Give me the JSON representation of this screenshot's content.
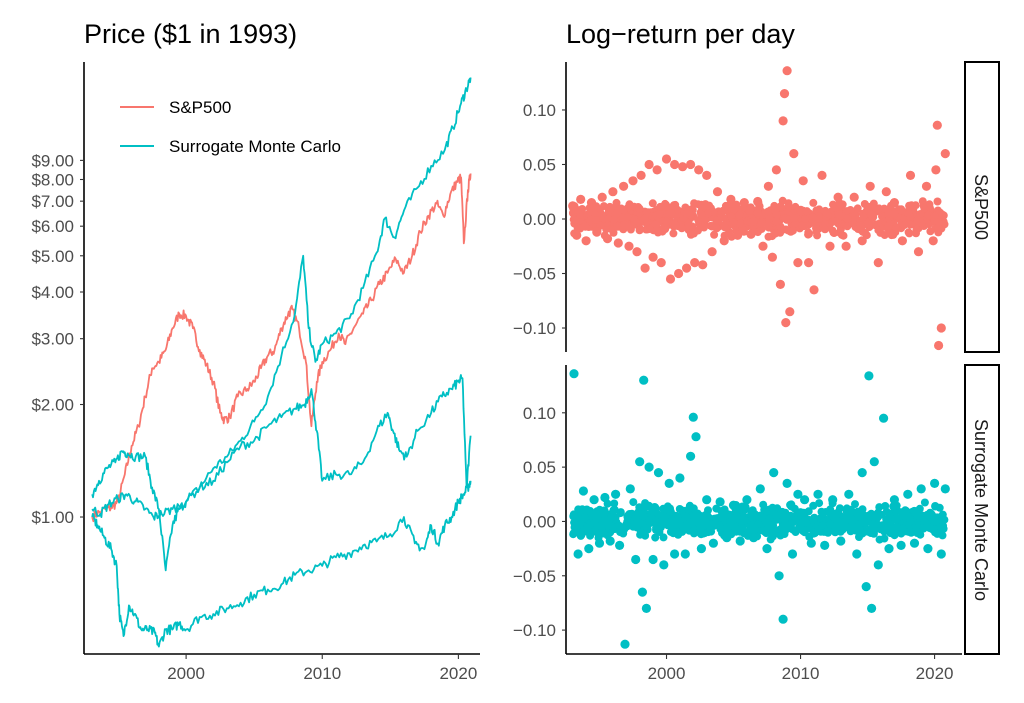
{
  "colors": {
    "sp500": "#F8766D",
    "surrogate": "#00BFC4"
  },
  "chart_data": [
    {
      "type": "line",
      "title": "Price ($1 in 1993)",
      "xlabel": "",
      "ylabel": "",
      "y_scale": "log",
      "xlim": [
        1992.5,
        2021.0
      ],
      "ylim": [
        0.43,
        16.5
      ],
      "x_ticks": [
        2000,
        2010,
        2020
      ],
      "y_ticks": [
        {
          "value": 1,
          "label": "$1.00"
        },
        {
          "value": 2,
          "label": "$2.00"
        },
        {
          "value": 3,
          "label": "$3.00"
        },
        {
          "value": 4,
          "label": "$4.00"
        },
        {
          "value": 5,
          "label": "$5.00"
        },
        {
          "value": 6,
          "label": "$6.00"
        },
        {
          "value": 7,
          "label": "$7.00"
        },
        {
          "value": 8,
          "label": "$8.00"
        },
        {
          "value": 9,
          "label": "$9.00"
        }
      ],
      "legend_position": "top-left",
      "legend": [
        "S&P500",
        "Surrogate Monte Carlo"
      ],
      "series": [
        {
          "name": "S&P500",
          "color_key": "sp500",
          "x": [
            1993.1,
            1993.8,
            1994.5,
            1995.0,
            1995.5,
            1996.0,
            1996.5,
            1997.0,
            1997.5,
            1998.0,
            1998.5,
            1999.0,
            1999.5,
            2000.0,
            2000.5,
            2001.0,
            2001.5,
            2002.0,
            2002.5,
            2002.8,
            2003.2,
            2003.8,
            2004.5,
            2005.0,
            2005.5,
            2006.0,
            2006.5,
            2007.0,
            2007.5,
            2007.8,
            2008.3,
            2008.8,
            2009.2,
            2009.6,
            2010.0,
            2010.6,
            2011.2,
            2011.7,
            2012.3,
            2013.0,
            2013.6,
            2014.2,
            2014.8,
            2015.4,
            2016.0,
            2016.6,
            2017.2,
            2017.8,
            2018.4,
            2018.9,
            2019.4,
            2019.9,
            2020.2,
            2020.4,
            2020.7,
            2020.9
          ],
          "y": [
            1.0,
            1.04,
            1.06,
            1.1,
            1.3,
            1.55,
            1.75,
            2.1,
            2.5,
            2.6,
            2.8,
            3.2,
            3.5,
            3.45,
            3.2,
            2.8,
            2.55,
            2.3,
            1.9,
            1.82,
            1.85,
            2.1,
            2.2,
            2.3,
            2.5,
            2.7,
            2.8,
            3.2,
            3.5,
            3.6,
            3.2,
            2.6,
            1.75,
            2.3,
            2.6,
            2.8,
            3.1,
            2.9,
            3.2,
            3.5,
            3.8,
            4.2,
            4.5,
            4.9,
            4.5,
            5.0,
            5.8,
            6.4,
            6.9,
            6.4,
            7.3,
            7.9,
            8.1,
            5.4,
            7.5,
            8.3
          ]
        },
        {
          "name": "",
          "color_key": "surrogate",
          "x": [
            1993.1,
            1993.6,
            1994.2,
            1994.8,
            1995.3,
            1995.7,
            1996.3,
            1997.0,
            1997.5,
            1998.0,
            1998.5,
            1999.0,
            1999.5,
            2000.0,
            2001.0,
            2002.0,
            2003.0,
            2004.0,
            2005.0,
            2006.0,
            2007.0,
            2008.0,
            2008.6,
            2009.0,
            2009.5,
            2010.0,
            2011.0,
            2012.0,
            2013.0,
            2014.0,
            2014.6,
            2015.3,
            2016.0,
            2017.0,
            2018.0,
            2019.0,
            2019.6,
            2020.2,
            2020.6,
            2020.9
          ],
          "y": [
            1.15,
            1.25,
            1.35,
            1.4,
            1.5,
            1.48,
            1.45,
            1.45,
            1.2,
            1.05,
            0.72,
            0.95,
            1.05,
            1.1,
            1.2,
            1.35,
            1.45,
            1.6,
            1.8,
            2.1,
            2.7,
            3.5,
            5.0,
            3.2,
            2.6,
            2.9,
            3.1,
            3.4,
            4.1,
            5.1,
            6.3,
            5.6,
            6.6,
            7.6,
            8.7,
            9.6,
            11.0,
            12.8,
            14.0,
            15.0
          ]
        },
        {
          "name": "",
          "color_key": "surrogate",
          "x": [
            1993.1,
            1993.5,
            1994.0,
            1994.5,
            1994.9,
            1995.1,
            1995.4,
            1995.8,
            1996.2,
            1996.7,
            1997.2,
            1997.7,
            1998.0,
            1998.5,
            1999.0,
            1999.5,
            2000.0,
            2001.0,
            2002.0,
            2003.0,
            2004.0,
            2005.0,
            2006.0,
            2007.0,
            2008.0,
            2009.0,
            2010.0,
            2011.0,
            2012.0,
            2013.0,
            2014.0,
            2015.0,
            2016.0,
            2016.8,
            2017.5,
            2018.0,
            2018.5,
            2019.0,
            2019.5,
            2020.0,
            2020.4,
            2020.7,
            2020.9
          ],
          "y": [
            1.0,
            0.95,
            0.88,
            0.82,
            0.74,
            0.55,
            0.48,
            0.58,
            0.55,
            0.5,
            0.5,
            0.49,
            0.45,
            0.5,
            0.5,
            0.52,
            0.5,
            0.54,
            0.55,
            0.57,
            0.59,
            0.62,
            0.64,
            0.66,
            0.7,
            0.72,
            0.74,
            0.78,
            0.8,
            0.84,
            0.86,
            0.9,
            1.0,
            0.85,
            0.82,
            0.95,
            0.85,
            0.95,
            1.0,
            1.1,
            1.15,
            1.2,
            1.25
          ]
        },
        {
          "name": "Surrogate Monte Carlo",
          "color_key": "surrogate",
          "x": [
            1993.1,
            1993.7,
            1994.3,
            1995.0,
            1995.6,
            1996.3,
            1997.0,
            1997.6,
            1998.2,
            1999.0,
            2000.0,
            2001.0,
            2002.0,
            2003.0,
            2004.0,
            2005.0,
            2006.0,
            2007.0,
            2008.0,
            2008.7,
            2009.2,
            2009.6,
            2010.0,
            2011.0,
            2012.0,
            2013.0,
            2014.0,
            2014.8,
            2015.2,
            2015.7,
            2016.2,
            2017.0,
            2018.0,
            2018.8,
            2019.5,
            2020.0,
            2020.3,
            2020.6,
            2020.9
          ],
          "y": [
            1.05,
            1.02,
            1.08,
            1.12,
            1.15,
            1.1,
            1.05,
            1.0,
            1.02,
            1.05,
            1.1,
            1.2,
            1.25,
            1.4,
            1.55,
            1.6,
            1.75,
            1.85,
            1.95,
            2.0,
            2.2,
            1.7,
            1.25,
            1.3,
            1.3,
            1.4,
            1.7,
            1.9,
            1.7,
            1.5,
            1.45,
            1.7,
            1.9,
            2.1,
            2.2,
            2.3,
            2.35,
            1.2,
            1.65
          ]
        }
      ]
    },
    {
      "type": "scatter",
      "title": "Log−return per day",
      "xlabel": "",
      "ylabel": "",
      "xlim": [
        1992.5,
        2021.3
      ],
      "ylim": [
        -0.122,
        0.144
      ],
      "x_ticks": [
        2000,
        2010,
        2020
      ],
      "y_ticks": [
        {
          "value": 0.1,
          "label": "0.10"
        },
        {
          "value": 0.05,
          "label": "0.05"
        },
        {
          "value": 0.0,
          "label": "0.00"
        },
        {
          "value": -0.05,
          "label": "−0.05"
        },
        {
          "value": -0.1,
          "label": "−0.10"
        }
      ],
      "facets": [
        {
          "strip": "S&P500",
          "color_key": "sp500",
          "x": [
            1993.0,
            1993.3,
            1993.6,
            1994.0,
            1994.4,
            1994.8,
            1995.2,
            1995.6,
            1996.0,
            1996.4,
            1996.8,
            1997.2,
            1997.5,
            1997.8,
            1998.1,
            1998.4,
            1998.7,
            1999.0,
            1999.3,
            1999.6,
            2000.0,
            2000.3,
            2000.6,
            2000.9,
            2001.2,
            2001.5,
            2001.8,
            2002.1,
            2002.4,
            2002.7,
            2003.0,
            2003.4,
            2003.8,
            2004.3,
            2004.8,
            2005.3,
            2005.8,
            2006.3,
            2006.8,
            2007.2,
            2007.6,
            2007.9,
            2008.2,
            2008.5,
            2008.7,
            2008.8,
            2008.9,
            2009.0,
            2009.2,
            2009.5,
            2009.8,
            2010.2,
            2010.6,
            2011.0,
            2011.6,
            2012.2,
            2012.8,
            2013.4,
            2014.0,
            2014.6,
            2015.2,
            2015.8,
            2016.4,
            2017.0,
            2017.6,
            2018.2,
            2018.8,
            2019.4,
            2019.9,
            2020.1,
            2020.2,
            2020.3,
            2020.5,
            2020.8
          ],
          "y": [
            0.012,
            -0.015,
            0.018,
            -0.02,
            0.015,
            -0.012,
            0.02,
            -0.018,
            0.025,
            -0.022,
            0.03,
            -0.025,
            0.035,
            -0.03,
            0.04,
            -0.045,
            0.05,
            -0.035,
            0.045,
            -0.04,
            0.055,
            -0.055,
            0.05,
            -0.05,
            0.048,
            -0.045,
            0.05,
            -0.04,
            0.045,
            -0.042,
            0.04,
            -0.03,
            0.025,
            -0.02,
            0.018,
            -0.015,
            0.015,
            -0.014,
            0.016,
            -0.025,
            0.03,
            -0.035,
            0.045,
            -0.06,
            0.09,
            0.115,
            -0.095,
            0.136,
            -0.085,
            0.06,
            -0.04,
            0.035,
            -0.04,
            -0.065,
            0.04,
            -0.025,
            0.02,
            -0.025,
            0.02,
            -0.02,
            0.03,
            -0.04,
            0.025,
            0.015,
            -0.02,
            0.04,
            -0.03,
            0.03,
            -0.02,
            0.045,
            0.086,
            -0.116,
            -0.1,
            0.06
          ]
        },
        {
          "strip": "Surrogate Monte Carlo",
          "color_key": "surrogate",
          "x": [
            1993.1,
            1993.4,
            1993.8,
            1994.2,
            1994.6,
            1995.0,
            1995.4,
            1995.8,
            1996.2,
            1996.5,
            1996.9,
            1997.3,
            1997.7,
            1998.0,
            1998.2,
            1998.3,
            1998.5,
            1998.7,
            1999.0,
            1999.4,
            1999.8,
            2000.2,
            2000.6,
            2001.0,
            2001.4,
            2001.8,
            2002.0,
            2002.2,
            2002.6,
            2003.0,
            2003.5,
            2004.0,
            2004.5,
            2005.0,
            2005.5,
            2006.0,
            2006.5,
            2007.0,
            2007.5,
            2008.0,
            2008.4,
            2008.7,
            2009.0,
            2009.4,
            2009.8,
            2010.3,
            2010.8,
            2011.3,
            2011.8,
            2012.4,
            2013.0,
            2013.6,
            2014.2,
            2014.6,
            2014.9,
            2015.1,
            2015.3,
            2015.5,
            2015.8,
            2016.2,
            2016.6,
            2017.0,
            2017.5,
            2018.0,
            2018.5,
            2019.0,
            2019.5,
            2020.0,
            2020.5,
            2020.8
          ],
          "y": [
            0.136,
            -0.03,
            0.028,
            -0.025,
            0.02,
            -0.02,
            0.022,
            -0.018,
            0.025,
            -0.022,
            -0.113,
            0.03,
            -0.035,
            0.055,
            -0.065,
            0.13,
            -0.08,
            0.05,
            -0.035,
            0.045,
            -0.04,
            0.035,
            -0.03,
            0.04,
            -0.03,
            0.06,
            0.096,
            0.078,
            -0.025,
            0.02,
            -0.02,
            0.018,
            -0.015,
            0.015,
            -0.018,
            0.02,
            -0.015,
            0.03,
            -0.025,
            0.045,
            -0.05,
            -0.09,
            0.035,
            -0.03,
            0.025,
            0.02,
            -0.02,
            0.025,
            -0.022,
            0.02,
            -0.018,
            0.025,
            -0.03,
            0.045,
            -0.06,
            0.134,
            -0.08,
            0.055,
            -0.04,
            0.095,
            -0.025,
            0.02,
            -0.022,
            0.025,
            -0.02,
            0.03,
            -0.025,
            0.035,
            -0.03,
            0.03
          ]
        }
      ]
    }
  ]
}
